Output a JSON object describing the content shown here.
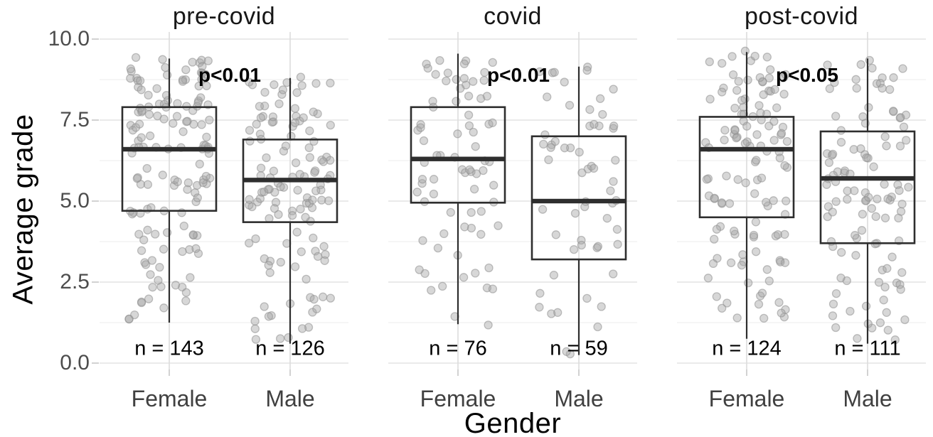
{
  "chart_data": {
    "type": "boxplot-jitter",
    "title": "",
    "y_axis": {
      "title": "Average grade",
      "range": [
        0,
        10
      ],
      "ticks": [
        {
          "label": "0.0",
          "value": 0
        },
        {
          "label": "2.5",
          "value": 2.5
        },
        {
          "label": "5.0",
          "value": 5
        },
        {
          "label": "7.5",
          "value": 7.5
        },
        {
          "label": "10.0",
          "value": 10
        }
      ],
      "minor_gridlines": [
        1.25,
        3.75,
        6.25,
        8.75
      ]
    },
    "x_axis": {
      "title": "Gender",
      "categories": [
        "Female",
        "Male"
      ]
    },
    "legend": "none",
    "grid": "on",
    "facets": [
      {
        "title": "pre-covid",
        "p_label": "p<0.01",
        "groups": [
          {
            "label": "Female",
            "n": 143,
            "n_label": "n = 143",
            "whisker_low": 1.25,
            "q1": 4.7,
            "median": 6.6,
            "q3": 7.9,
            "whisker_high": 9.4
          },
          {
            "label": "Male",
            "n": 126,
            "n_label": "n = 126",
            "whisker_low": 0.6,
            "q1": 4.35,
            "median": 5.65,
            "q3": 6.9,
            "whisker_high": 8.8
          }
        ]
      },
      {
        "title": "covid",
        "p_label": "p<0.01",
        "groups": [
          {
            "label": "Female",
            "n": 76,
            "n_label": "n = 76",
            "whisker_low": 1.2,
            "q1": 4.95,
            "median": 6.3,
            "q3": 7.9,
            "whisker_high": 9.55
          },
          {
            "label": "Male",
            "n": 59,
            "n_label": "n = 59",
            "whisker_low": 0.25,
            "q1": 3.2,
            "median": 5.0,
            "q3": 7.0,
            "whisker_high": 9.15
          }
        ]
      },
      {
        "title": "post-covid",
        "p_label": "p<0.05",
        "groups": [
          {
            "label": "Female",
            "n": 124,
            "n_label": "n = 124",
            "whisker_low": 0.75,
            "q1": 4.5,
            "median": 6.6,
            "q3": 7.6,
            "whisker_high": 9.6
          },
          {
            "label": "Male",
            "n": 111,
            "n_label": "n = 111",
            "whisker_low": 0.6,
            "q1": 3.7,
            "median": 5.7,
            "q3": 7.15,
            "whisker_high": 9.4
          }
        ]
      }
    ],
    "style": {
      "background": "#ffffff",
      "grid_major": "#e4e4e4",
      "grid_minor": "#f1f1f1",
      "grid_vertical": "#dcdcdc",
      "axis_tick": "#d2d2d2",
      "box_stroke": "#2e2e2e",
      "median_fill": "#2e2e2e",
      "point_fill": "#a6a6a6",
      "point_stroke": "#8f8f8f",
      "p_label_color": "#000000",
      "n_label_color": "#000000",
      "tick_label_color": "#4d4d4d",
      "category_label_color": "#404040",
      "title_color": "#171717"
    }
  }
}
